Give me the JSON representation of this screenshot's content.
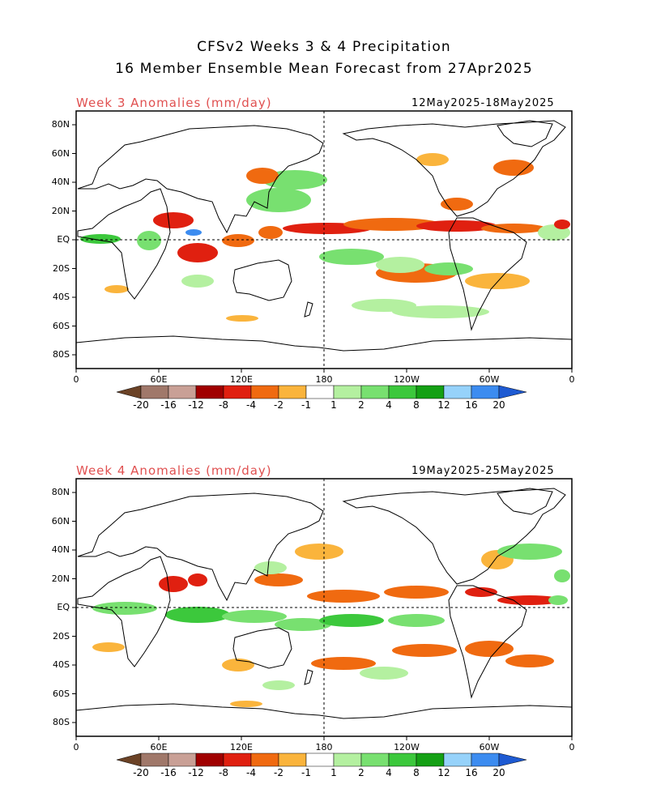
{
  "header": {
    "title_line1": "CFSv2 Weeks 3 & 4 Precipitation",
    "title_line2": "16 Member Ensemble Mean Forecast from 27Apr2025"
  },
  "panels": [
    {
      "title": "Week 3 Anomalies (mm/day)",
      "date_range": "12May2025-18May2025"
    },
    {
      "title": "Week 4 Anomalies (mm/day)",
      "date_range": "19May2025-25May2025"
    }
  ],
  "lat_ticks": [
    "80N",
    "60N",
    "40N",
    "20N",
    "EQ",
    "20S",
    "40S",
    "60S",
    "80S"
  ],
  "lon_ticks": [
    "0",
    "60E",
    "120E",
    "180",
    "120W",
    "60W",
    "0"
  ],
  "colorbar": {
    "labels": [
      "-20",
      "-16",
      "-12",
      "-8",
      "-4",
      "-2",
      "-1",
      "1",
      "2",
      "4",
      "8",
      "12",
      "16",
      "20"
    ],
    "colors": [
      "#6b4226",
      "#a0786a",
      "#c9a096",
      "#a00000",
      "#e02010",
      "#f06a10",
      "#fab43c",
      "#ffffff",
      "#b4f0a0",
      "#78e070",
      "#3cc83c",
      "#14a014",
      "#96d2fa",
      "#3c8cf0",
      "#1e5ad2"
    ]
  },
  "colors": {
    "dry_strong": "#e02010",
    "dry_medium": "#f06a10",
    "dry_light": "#fab43c",
    "wet_light": "#b4f0a0",
    "wet_medium": "#78e070",
    "wet_strong": "#3cc83c",
    "wet_blue": "#3c8cf0",
    "title_red": "#e05050"
  }
}
